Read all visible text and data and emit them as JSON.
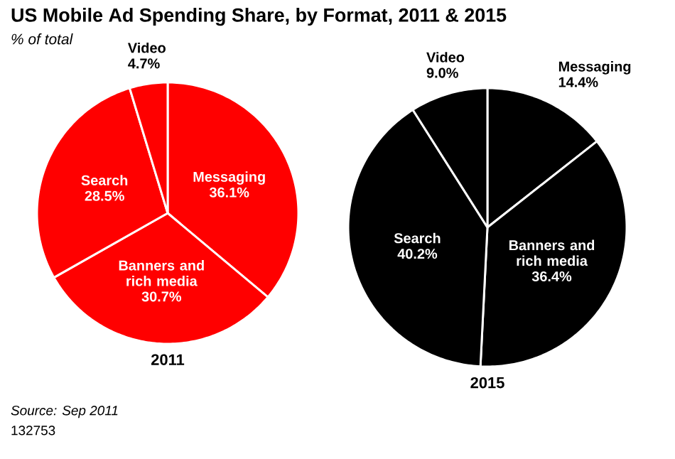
{
  "chart_data": [
    {
      "type": "pie",
      "title": "US Mobile Ad Spending Share, by Format, 2011 & 2015",
      "subtitle": "% of total",
      "xlabel": "2011",
      "categories": [
        "Messaging",
        "Banners and rich media",
        "Search",
        "Video"
      ],
      "values": [
        36.1,
        30.7,
        28.5,
        4.7
      ],
      "value_labels": [
        "36.1%",
        "30.7%",
        "28.5%",
        "4.7%"
      ],
      "colors": [
        "#ff0000",
        "#ff0000",
        "#ff0000",
        "#ff0000"
      ],
      "annotations": [
        "Source: Sep 2011",
        "132753"
      ]
    },
    {
      "type": "pie",
      "xlabel": "2015",
      "categories": [
        "Messaging",
        "Banners and rich media",
        "Search",
        "Video"
      ],
      "values": [
        14.4,
        36.4,
        40.2,
        9.0
      ],
      "value_labels": [
        "14.4%",
        "36.4%",
        "40.2%",
        "9.0%"
      ],
      "colors": [
        "#000000",
        "#000000",
        "#000000",
        "#000000"
      ]
    }
  ]
}
